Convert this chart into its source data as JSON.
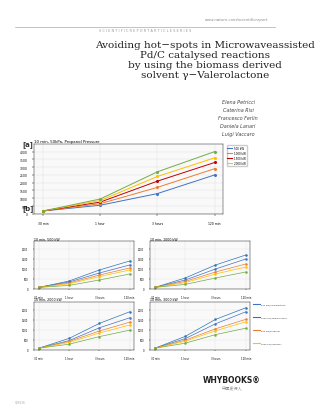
{
  "bg_color": "#ffffff",
  "header_url": "www.nature.com/scientificreport",
  "header_series": "S C I E N T I F I C R E P O R T A R T I C L E S E R I E S",
  "title_line1": "Avoiding hot−spots in Microwaveassisted",
  "title_line2": "Pd/C catalysed reactions",
  "title_line3": "by using the biomass derived",
  "title_line4": "solvent γ−Valerolactone",
  "authors": [
    "Elena Petricci",
    "Caterina Risi",
    "Francesco Ferlin",
    "Daniela Lanari",
    "Luigi Vaccaro"
  ],
  "fig_a_label": "[a]",
  "fig_b_label": "[b]",
  "fig_a_title": "10 min, 50kPa, Propanol Pressure",
  "fig_b1_title": "10 min, 500 kW",
  "fig_b2_title": "10 min, 1000 kW",
  "fig_b3_title": "10 min, 2000 kW",
  "fig_b4_title": "10 min, 3000 kW",
  "legend_a": [
    "500 kW",
    "1000 kW",
    "1500 kW",
    "2000 kW"
  ],
  "legend_b": [
    "500 kW/Valerolactone",
    "1000 kW/Valerolactone",
    "500 kW/Propanol",
    "1000 kW/Propanol"
  ],
  "colors_a": [
    "#4472c4",
    "#ed7d31",
    "#c00000",
    "#ffc000",
    "#70ad47"
  ],
  "colors_b": [
    "#4472c4",
    "#2e75b6",
    "#ed7d31",
    "#ffc000",
    "#70ad47"
  ],
  "whybooks_text": "WHYBOOKS®",
  "whybooks_sub": "中国发行人",
  "footer_left": "Q28536"
}
